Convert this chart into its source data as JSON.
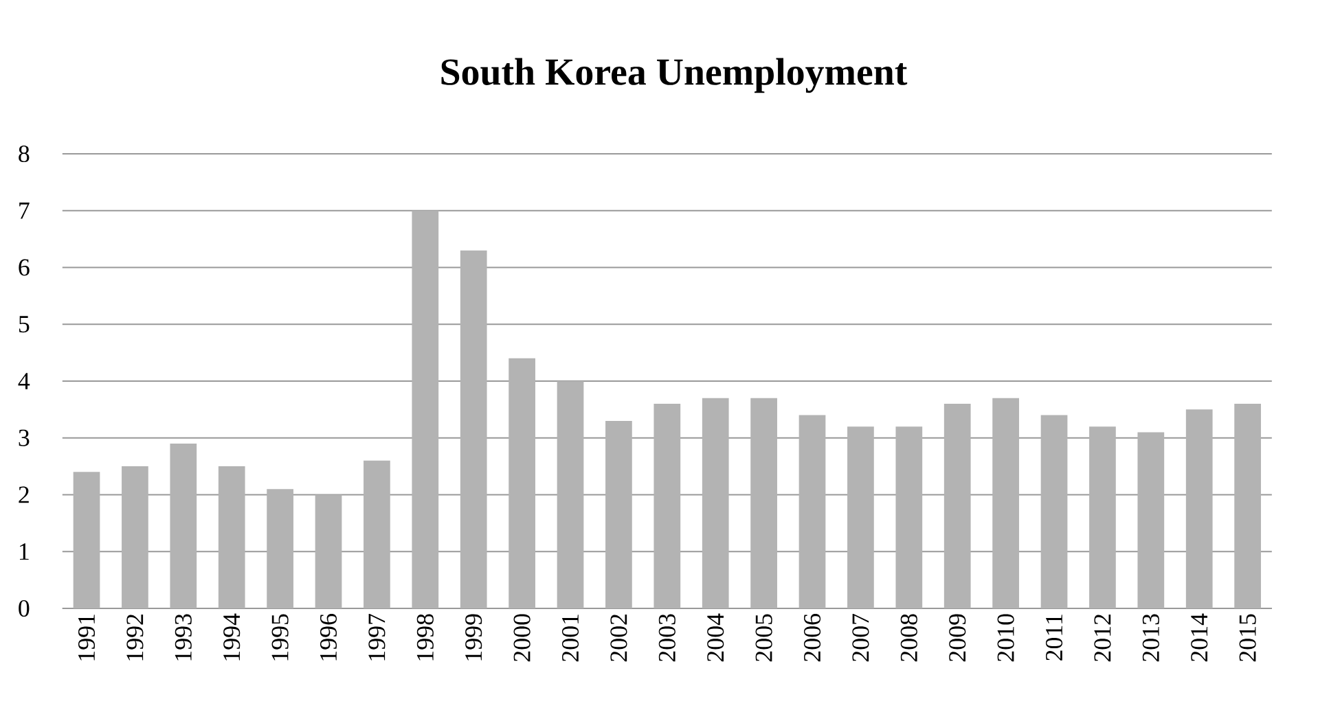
{
  "chart_data": {
    "type": "bar",
    "title": "South Korea Unemployment",
    "categories": [
      "1991",
      "1992",
      "1993",
      "1994",
      "1995",
      "1996",
      "1997",
      "1998",
      "1999",
      "2000",
      "2001",
      "2002",
      "2003",
      "2004",
      "2005",
      "2006",
      "2007",
      "2008",
      "2009",
      "2010",
      "2011",
      "2012",
      "2013",
      "2014",
      "2015"
    ],
    "values": [
      2.4,
      2.5,
      2.9,
      2.5,
      2.1,
      2.0,
      2.6,
      7.0,
      6.3,
      4.4,
      4.0,
      3.3,
      3.6,
      3.7,
      3.7,
      3.4,
      3.2,
      3.2,
      3.6,
      3.7,
      3.4,
      3.2,
      3.1,
      3.5,
      3.6
    ],
    "color": "#b3b3b3",
    "ylim": [
      0,
      8
    ],
    "yticks": [
      0,
      1,
      2,
      3,
      4,
      5,
      6,
      7,
      8
    ],
    "grid": "y"
  }
}
